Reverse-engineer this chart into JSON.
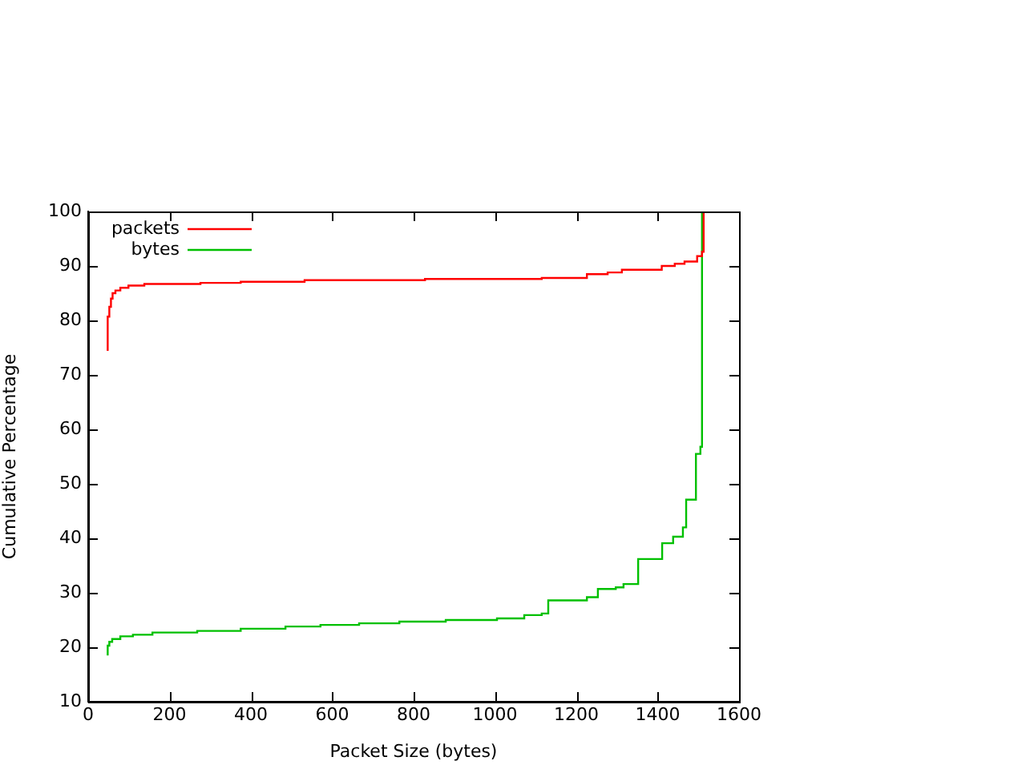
{
  "chart_data": {
    "type": "step",
    "xlabel": "Packet Size (bytes)",
    "ylabel": "Cumulative Percentage",
    "xlim": [
      0,
      1600
    ],
    "xticks": [
      0,
      200,
      400,
      600,
      800,
      1000,
      1200,
      1400,
      1600
    ],
    "ylim": [
      10,
      100
    ],
    "yticks": [
      10,
      20,
      30,
      40,
      50,
      60,
      70,
      80,
      90,
      100
    ],
    "grid": false,
    "legend": "top left",
    "line_style": "solid",
    "marker": "none",
    "series": [
      {
        "name": "packets",
        "color": "#ff0000",
        "x": [
          48,
          52,
          56,
          60,
          67,
          79,
          99,
          138,
          276,
          375,
          532,
          828,
          1115,
          1226,
          1277,
          1312,
          1410,
          1442,
          1466,
          1497,
          1509,
          1513,
          1513
        ],
        "values": [
          74.4,
          80.7,
          82.5,
          84,
          85,
          85.5,
          86,
          86.4,
          86.7,
          86.9,
          87.1,
          87.4,
          87.6,
          87.8,
          88.5,
          88.8,
          89.3,
          90,
          90.4,
          90.8,
          91.8,
          92.6,
          100
        ]
      },
      {
        "name": "bytes",
        "color": "#00c000",
        "x": [
          48,
          52,
          59,
          79,
          110,
          158,
          268,
          375,
          485,
          571,
          666,
          765,
          879,
          1005,
          1072,
          1115,
          1131,
          1226,
          1253,
          1297,
          1316,
          1352,
          1411,
          1438,
          1462,
          1470,
          1494,
          1505,
          1509,
          1513
        ],
        "values": [
          18.5,
          20.3,
          21,
          21.5,
          22,
          22.3,
          22.7,
          23,
          23.4,
          23.8,
          24.1,
          24.4,
          24.7,
          25,
          25.3,
          25.9,
          26.2,
          28.6,
          29.2,
          30.7,
          31,
          31.6,
          36.2,
          39.1,
          40.3,
          42,
          47.1,
          55.5,
          56.8,
          100
        ]
      }
    ]
  }
}
